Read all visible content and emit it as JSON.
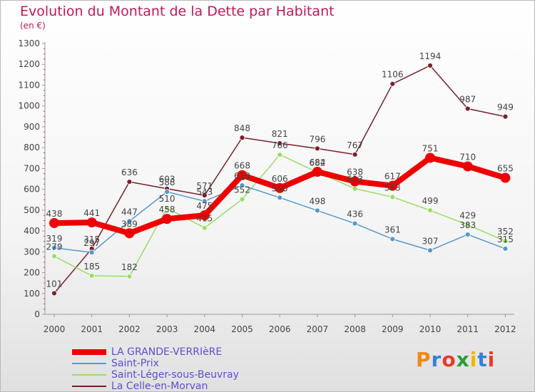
{
  "title": "Evolution du Montant de la Dette par Habitant",
  "subtitle": "(en €)",
  "logo": "Proxiti",
  "chart_data": {
    "type": "line",
    "x": [
      "2000",
      "2001",
      "2002",
      "2003",
      "2004",
      "2005",
      "2006",
      "2007",
      "2008",
      "2009",
      "2010",
      "2011",
      "2012"
    ],
    "ylim": [
      0,
      1300
    ],
    "yticks": [
      0,
      100,
      200,
      300,
      400,
      500,
      600,
      700,
      800,
      900,
      1000,
      1100,
      1200,
      1300
    ],
    "grid": false,
    "legend_position": "bottom-left",
    "series": [
      {
        "name": "La Celle-en-Morvan",
        "color": "#7a1f2b",
        "values": [
          101,
          315,
          636,
          603,
          571,
          848,
          821,
          796,
          767,
          1106,
          1194,
          987,
          949
        ]
      },
      {
        "name": "Saint-Léger-sous-Beuvray",
        "color": "#99dd66",
        "values": [
          279,
          185,
          182,
          510,
          415,
          552,
          766,
          682,
          603,
          563,
          499,
          429,
          352
        ]
      },
      {
        "name": "Saint-Prix",
        "color": "#5599cc",
        "values": [
          319,
          297,
          447,
          588,
          543,
          619,
          560,
          498,
          436,
          361,
          307,
          383,
          315
        ]
      },
      {
        "name": "LA GRANDE-VERRIèRE",
        "color": "#ee0000",
        "values": [
          438,
          441,
          389,
          458,
          475,
          668,
          606,
          684,
          638,
          617,
          751,
          710,
          655
        ]
      }
    ]
  }
}
